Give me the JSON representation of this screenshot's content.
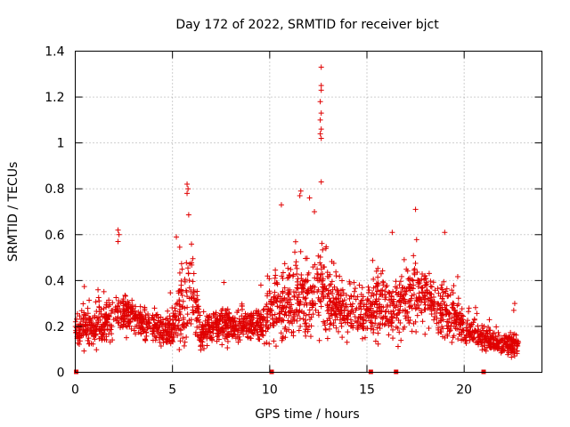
{
  "chart_data": {
    "type": "scatter",
    "title": "Day 172 of 2022, SRMTID for receiver bjct",
    "xlabel": "GPS time / hours",
    "ylabel": "SRMTID / TECUs",
    "xlim": [
      0,
      24
    ],
    "ylim": [
      0,
      1.4
    ],
    "x_ticks": [
      0,
      5,
      10,
      15,
      20
    ],
    "x_tick_labels": [
      "0",
      "5",
      "10",
      "15",
      "20"
    ],
    "y_ticks": [
      0,
      0.2,
      0.4,
      0.6,
      0.8,
      1.0,
      1.2,
      1.4
    ],
    "y_tick_labels": [
      "0",
      "0.2",
      "0.4",
      "0.6",
      "0.8",
      "1",
      "1.2",
      "1.4"
    ],
    "grid": true,
    "marker": "+",
    "color": "#e00000",
    "x_end_hours": 22.8,
    "zero_markers_x": [
      0.05,
      10.1,
      15.2,
      16.5,
      21.0
    ],
    "envelope": {
      "x": [
        0.0,
        0.5,
        1.0,
        1.5,
        2.0,
        2.5,
        3.0,
        3.5,
        4.0,
        4.5,
        5.0,
        5.5,
        6.0,
        6.5,
        7.0,
        7.5,
        8.0,
        8.5,
        9.0,
        9.5,
        10.0,
        10.5,
        11.0,
        11.5,
        12.0,
        12.5,
        13.0,
        13.5,
        14.0,
        14.5,
        15.0,
        15.5,
        16.0,
        16.5,
        17.0,
        17.5,
        18.0,
        18.5,
        19.0,
        19.5,
        20.0,
        20.5,
        21.0,
        21.5,
        22.0,
        22.5,
        22.8
      ],
      "median": [
        0.18,
        0.2,
        0.2,
        0.22,
        0.23,
        0.26,
        0.25,
        0.22,
        0.2,
        0.19,
        0.18,
        0.3,
        0.32,
        0.18,
        0.2,
        0.2,
        0.2,
        0.21,
        0.22,
        0.2,
        0.27,
        0.28,
        0.3,
        0.3,
        0.32,
        0.34,
        0.32,
        0.29,
        0.27,
        0.26,
        0.25,
        0.3,
        0.29,
        0.27,
        0.3,
        0.34,
        0.33,
        0.29,
        0.27,
        0.24,
        0.2,
        0.17,
        0.15,
        0.13,
        0.12,
        0.12,
        0.12
      ],
      "spread": [
        0.08,
        0.12,
        0.14,
        0.14,
        0.14,
        0.12,
        0.12,
        0.1,
        0.1,
        0.1,
        0.12,
        0.25,
        0.25,
        0.1,
        0.1,
        0.1,
        0.1,
        0.1,
        0.1,
        0.1,
        0.2,
        0.22,
        0.22,
        0.22,
        0.26,
        0.28,
        0.22,
        0.16,
        0.16,
        0.16,
        0.16,
        0.22,
        0.2,
        0.18,
        0.22,
        0.22,
        0.2,
        0.2,
        0.2,
        0.14,
        0.1,
        0.08,
        0.07,
        0.06,
        0.06,
        0.08,
        0.05
      ]
    },
    "notable_points": [
      {
        "x": 12.65,
        "y": 1.33
      },
      {
        "x": 12.65,
        "y": 1.25
      },
      {
        "x": 12.65,
        "y": 1.23
      },
      {
        "x": 12.6,
        "y": 1.18
      },
      {
        "x": 12.65,
        "y": 1.13
      },
      {
        "x": 12.6,
        "y": 1.1
      },
      {
        "x": 12.65,
        "y": 1.06
      },
      {
        "x": 12.6,
        "y": 1.04
      },
      {
        "x": 12.65,
        "y": 1.02
      },
      {
        "x": 12.65,
        "y": 0.83
      },
      {
        "x": 5.75,
        "y": 0.82
      },
      {
        "x": 5.8,
        "y": 0.8
      },
      {
        "x": 5.75,
        "y": 0.78
      },
      {
        "x": 11.6,
        "y": 0.79
      },
      {
        "x": 11.55,
        "y": 0.77
      },
      {
        "x": 2.2,
        "y": 0.62
      },
      {
        "x": 2.25,
        "y": 0.6
      },
      {
        "x": 2.2,
        "y": 0.57
      },
      {
        "x": 17.5,
        "y": 0.71
      },
      {
        "x": 19.0,
        "y": 0.61
      },
      {
        "x": 10.6,
        "y": 0.73
      },
      {
        "x": 12.05,
        "y": 0.76
      },
      {
        "x": 12.3,
        "y": 0.7
      },
      {
        "x": 5.2,
        "y": 0.59
      },
      {
        "x": 16.3,
        "y": 0.61
      },
      {
        "x": 22.6,
        "y": 0.3
      },
      {
        "x": 22.55,
        "y": 0.27
      }
    ]
  }
}
